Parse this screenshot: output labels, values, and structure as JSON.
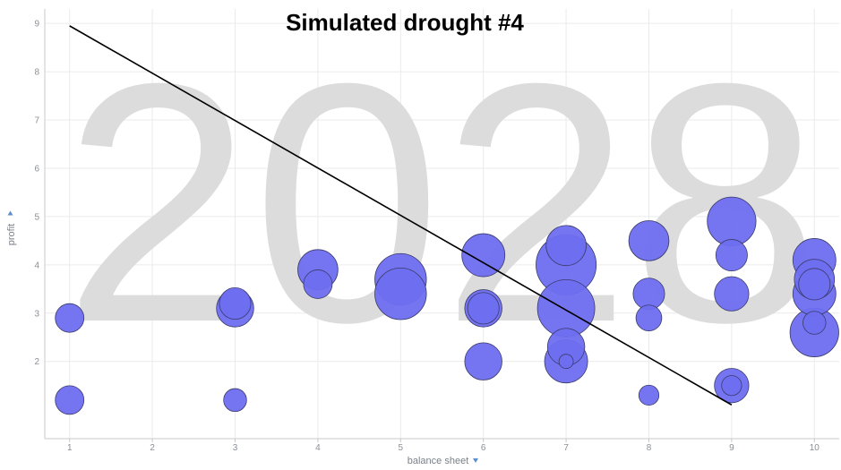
{
  "chart_data": {
    "type": "scatter",
    "title": "Simulated drought #4",
    "watermark": "2028",
    "xlabel": "balance sheet",
    "ylabel": "profit",
    "axis_dropdown_icon": "triangle-down-icon",
    "xlim": [
      0.7,
      10.3
    ],
    "ylim": [
      0.4,
      9.3
    ],
    "xticks": [
      1,
      2,
      3,
      4,
      5,
      6,
      7,
      8,
      9,
      10
    ],
    "yticks": [
      2,
      3,
      4,
      5,
      6,
      7,
      8,
      9
    ],
    "grid": true,
    "bubble_color": "#6e6ef0",
    "bubble_stroke": "#3a3a6a",
    "gridline_color": "#ebebeb",
    "trendline": {
      "x": [
        1,
        9
      ],
      "y": [
        8.95,
        1.1
      ],
      "color": "#000000"
    },
    "points": [
      {
        "x": 1,
        "y": 2.9,
        "size": 1.0
      },
      {
        "x": 1,
        "y": 1.2,
        "size": 1.0
      },
      {
        "x": 3,
        "y": 3.1,
        "size": 1.3
      },
      {
        "x": 3,
        "y": 3.2,
        "size": 1.1
      },
      {
        "x": 3,
        "y": 1.2,
        "size": 0.8
      },
      {
        "x": 4,
        "y": 3.9,
        "size": 1.4
      },
      {
        "x": 4,
        "y": 3.6,
        "size": 1.0
      },
      {
        "x": 5,
        "y": 3.7,
        "size": 1.8
      },
      {
        "x": 5,
        "y": 3.4,
        "size": 1.8
      },
      {
        "x": 6,
        "y": 4.2,
        "size": 1.5
      },
      {
        "x": 6,
        "y": 3.1,
        "size": 1.3
      },
      {
        "x": 6,
        "y": 3.1,
        "size": 1.1
      },
      {
        "x": 6,
        "y": 2.0,
        "size": 1.3
      },
      {
        "x": 7,
        "y": 4.0,
        "size": 2.1
      },
      {
        "x": 7,
        "y": 4.4,
        "size": 1.4
      },
      {
        "x": 7,
        "y": 3.1,
        "size": 2.0
      },
      {
        "x": 7,
        "y": 2.3,
        "size": 1.3
      },
      {
        "x": 7,
        "y": 2.0,
        "size": 1.5
      },
      {
        "x": 7,
        "y": 2.0,
        "size": 0.5
      },
      {
        "x": 8,
        "y": 4.5,
        "size": 1.4
      },
      {
        "x": 8,
        "y": 3.4,
        "size": 1.1
      },
      {
        "x": 8,
        "y": 2.9,
        "size": 0.9
      },
      {
        "x": 8,
        "y": 1.3,
        "size": 0.7
      },
      {
        "x": 9,
        "y": 4.9,
        "size": 1.7
      },
      {
        "x": 9,
        "y": 4.2,
        "size": 1.1
      },
      {
        "x": 9,
        "y": 3.4,
        "size": 1.2
      },
      {
        "x": 9,
        "y": 1.5,
        "size": 1.2
      },
      {
        "x": 9,
        "y": 1.5,
        "size": 0.7
      },
      {
        "x": 10,
        "y": 4.1,
        "size": 1.5
      },
      {
        "x": 10,
        "y": 3.7,
        "size": 1.4
      },
      {
        "x": 10,
        "y": 3.4,
        "size": 1.5
      },
      {
        "x": 10,
        "y": 3.6,
        "size": 1.1
      },
      {
        "x": 10,
        "y": 2.6,
        "size": 1.7
      },
      {
        "x": 10,
        "y": 2.8,
        "size": 0.8
      }
    ]
  }
}
